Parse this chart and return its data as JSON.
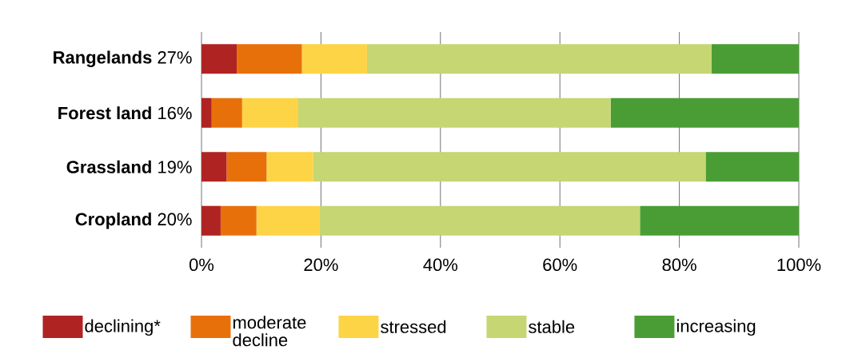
{
  "chart_data": {
    "type": "bar",
    "orientation": "horizontal",
    "stacked": true,
    "categories": [
      "**Rangelands** 27%",
      "**Forest land** 16%",
      "**Grassland** 19%",
      "**Cropland** 20%"
    ],
    "series": [
      {
        "name": "declining*",
        "color": "#b02323",
        "values": [
          5.9,
          1.7,
          4.2,
          3.2
        ]
      },
      {
        "name": "moderate decline",
        "color": "#e8700b",
        "values": [
          10.9,
          5.1,
          6.7,
          6.0
        ]
      },
      {
        "name": "stressed",
        "color": "#fdd446",
        "values": [
          10.9,
          9.4,
          7.8,
          10.6
        ]
      },
      {
        "name": "stable",
        "color": "#c5d673",
        "values": [
          57.7,
          52.3,
          65.7,
          53.6
        ]
      },
      {
        "name": "increasing",
        "color": "#4a9d35",
        "values": [
          14.6,
          31.5,
          15.6,
          26.6
        ]
      }
    ],
    "xlim": [
      0,
      100
    ],
    "xticks": [
      {
        "value": 0,
        "label": "0%"
      },
      {
        "value": 20,
        "label": "20%"
      },
      {
        "value": 40,
        "label": "40%"
      },
      {
        "value": 60,
        "label": "60%"
      },
      {
        "value": 80,
        "label": "80%"
      },
      {
        "value": 100,
        "label": "100%"
      }
    ],
    "grid": "x",
    "legend": "bottom"
  }
}
